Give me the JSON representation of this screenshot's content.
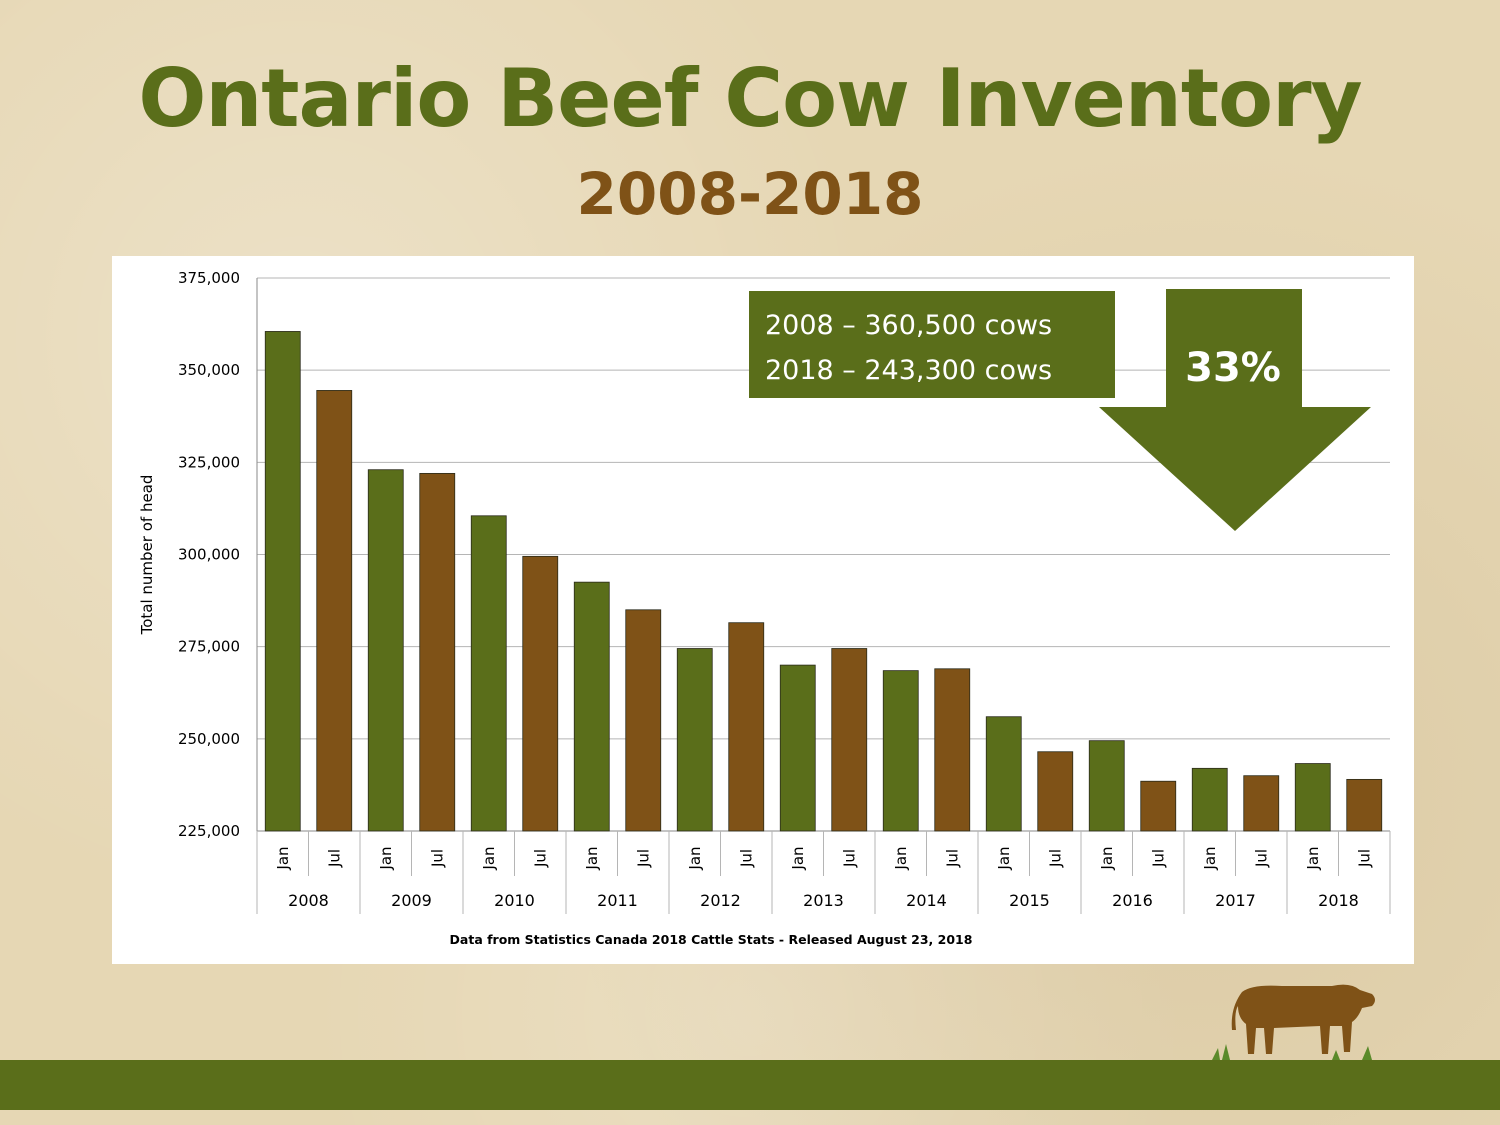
{
  "slide": {
    "title": "Ontario Beef Cow Inventory",
    "subtitle": "2008-2018"
  },
  "callout": {
    "line1": "2008 – 360,500 cows",
    "line2": "2018 – 243,300 cows",
    "percent": "33%"
  },
  "colors": {
    "green": "#5a6e1a",
    "brown": "#7f5217",
    "title_green": "#5a6e1a",
    "subtitle_brown": "#7f5217"
  },
  "icons": {
    "arrow": "down-arrow-icon",
    "cow": "cow-icon"
  },
  "chart_data": {
    "type": "bar",
    "title": "",
    "xlabel": "",
    "ylabel": "Total number of head",
    "ylim": [
      225000,
      375000
    ],
    "yticks": [
      225000,
      250000,
      275000,
      300000,
      325000,
      350000,
      375000
    ],
    "ytick_labels": [
      "225,000",
      "250,000",
      "275,000",
      "300,000",
      "325,000",
      "350,000",
      "375,000"
    ],
    "grid": true,
    "legend": "none",
    "source_note": "Data from Statistics Canada 2018 Cattle Stats - Released August 23, 2018",
    "years": [
      "2008",
      "2009",
      "2010",
      "2011",
      "2012",
      "2013",
      "2014",
      "2015",
      "2016",
      "2017",
      "2018"
    ],
    "months": [
      "Jan",
      "Jul"
    ],
    "categories": [
      "2008 Jan",
      "2008 Jul",
      "2009 Jan",
      "2009 Jul",
      "2010 Jan",
      "2010 Jul",
      "2011 Jan",
      "2011 Jul",
      "2012 Jan",
      "2012 Jul",
      "2013 Jan",
      "2013 Jul",
      "2014 Jan",
      "2014 Jul",
      "2015 Jan",
      "2015 Jul",
      "2016 Jan",
      "2016 Jul",
      "2017 Jan",
      "2017 Jul",
      "2018 Jan",
      "2018 Jul"
    ],
    "values": [
      360500,
      344500,
      323000,
      322000,
      310500,
      299500,
      292500,
      285000,
      274500,
      281500,
      270000,
      274500,
      268500,
      269000,
      256000,
      246500,
      249500,
      238500,
      242000,
      240000,
      243300,
      239000
    ]
  }
}
